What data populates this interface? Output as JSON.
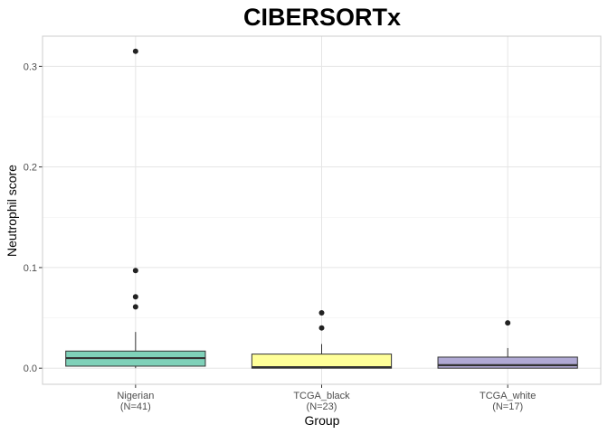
{
  "chart_data": {
    "type": "boxplot",
    "title": "CIBERSORTx",
    "xlabel": "Group",
    "ylabel": "Neutrophil score",
    "ylim": [
      -0.016,
      0.33
    ],
    "yticks": [
      0.0,
      0.1,
      0.2,
      0.3
    ],
    "ytick_labels": [
      "0.0",
      "0.1",
      "0.2",
      "0.3"
    ],
    "grid": true,
    "categories": [
      {
        "label": "Nigerian",
        "n_label": "(N=41)",
        "color": "#7fd1b9",
        "whisker_low": 0.0,
        "q1": 0.002,
        "median": 0.01,
        "q3": 0.017,
        "whisker_high": 0.036,
        "outliers": [
          0.315,
          0.097,
          0.071,
          0.061
        ]
      },
      {
        "label": "TCGA_black",
        "n_label": "(N=23)",
        "color": "#ffff99",
        "whisker_low": 0.0,
        "q1": 0.0,
        "median": 0.001,
        "q3": 0.014,
        "whisker_high": 0.024,
        "outliers": [
          0.055,
          0.04
        ]
      },
      {
        "label": "TCGA_white",
        "n_label": "(N=17)",
        "color": "#b0a9d4",
        "whisker_low": 0.0,
        "q1": 0.0,
        "median": 0.003,
        "q3": 0.011,
        "whisker_high": 0.02,
        "outliers": [
          0.045
        ]
      }
    ]
  }
}
